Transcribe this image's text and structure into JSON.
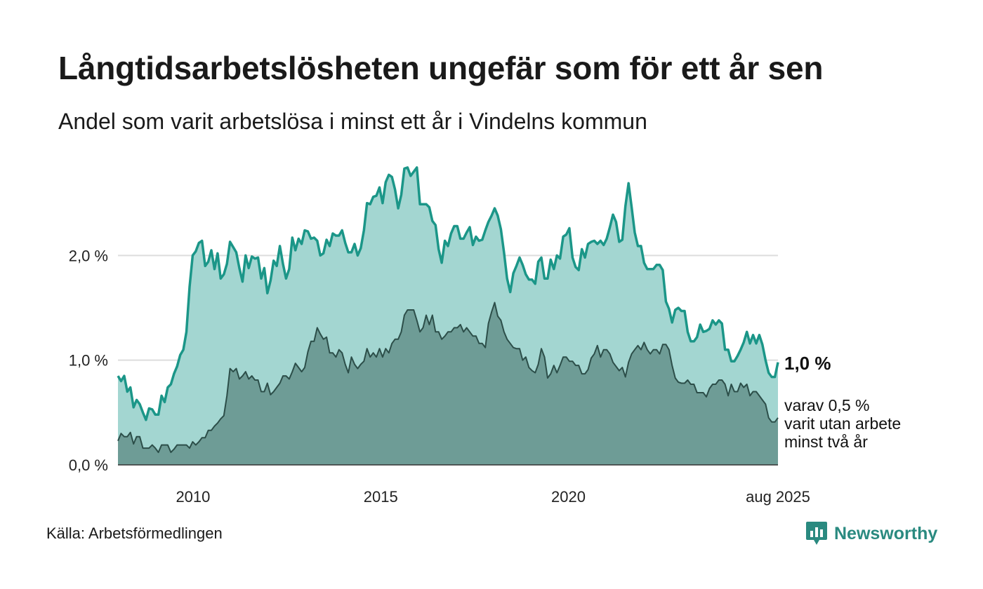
{
  "title": "Långtidsarbetslösheten ungefär som för ett år sen",
  "subtitle": "Andel som varit arbetslösa i minst ett år i Vindelns kommun",
  "source": "Källa: Arbetsförmedlingen",
  "brand": {
    "name": "Newsworthy",
    "icon": "newsworthy-logo-icon"
  },
  "colors": {
    "total_line": "#1b9688",
    "total_fill": "#a3d6d1",
    "long_line": "#2c4e49",
    "long_fill": "#6e9c96",
    "grid": "#dddddd"
  },
  "chart_data": {
    "type": "area",
    "x_start": "2008-01",
    "x_end": "2025-08",
    "x_ticks": [
      "2010",
      "2015",
      "2020",
      "aug 2025"
    ],
    "y_ticks": [
      "0,0 %",
      "1,0 %",
      "2,0 %"
    ],
    "ylim": [
      0,
      3.0
    ],
    "grid": true,
    "end_label_total": "1,0 %",
    "end_label_long": [
      "varav 0,5 %",
      "varit utan arbete",
      "minst två år"
    ],
    "series": [
      {
        "key": "total",
        "values": [
          0.85,
          0.8,
          0.85,
          0.7,
          0.74,
          0.55,
          0.62,
          0.58,
          0.5,
          0.43,
          0.54,
          0.53,
          0.48,
          0.48,
          0.66,
          0.6,
          0.74,
          0.77,
          0.87,
          0.94,
          1.05,
          1.1,
          1.27,
          1.7,
          2.0,
          2.04,
          2.12,
          2.14,
          1.9,
          1.94,
          2.05,
          1.87,
          2.02,
          1.78,
          1.82,
          1.92,
          2.13,
          2.08,
          2.03,
          1.88,
          1.75,
          2.0,
          1.88,
          1.99,
          1.97,
          1.98,
          1.78,
          1.88,
          1.64,
          1.76,
          1.95,
          1.9,
          2.09,
          1.92,
          1.78,
          1.87,
          2.17,
          2.05,
          2.16,
          2.11,
          2.24,
          2.23,
          2.16,
          2.17,
          2.14,
          2.0,
          2.02,
          2.15,
          2.09,
          2.21,
          2.19,
          2.19,
          2.24,
          2.12,
          2.03,
          2.03,
          2.11,
          2.0,
          2.07,
          2.24,
          2.5,
          2.49,
          2.56,
          2.57,
          2.65,
          2.5,
          2.7,
          2.77,
          2.75,
          2.63,
          2.45,
          2.58,
          2.83,
          2.84,
          2.76,
          2.8,
          2.84,
          2.49,
          2.49,
          2.49,
          2.46,
          2.33,
          2.29,
          2.06,
          1.93,
          2.14,
          2.09,
          2.21,
          2.28,
          2.28,
          2.16,
          2.16,
          2.22,
          2.27,
          2.1,
          2.18,
          2.14,
          2.15,
          2.24,
          2.32,
          2.38,
          2.45,
          2.38,
          2.25,
          2.03,
          1.78,
          1.65,
          1.83,
          1.9,
          1.98,
          1.91,
          1.82,
          1.77,
          1.77,
          1.73,
          1.94,
          1.98,
          1.78,
          1.78,
          1.96,
          1.87,
          2.0,
          1.97,
          2.18,
          2.2,
          2.26,
          1.98,
          1.89,
          1.86,
          2.06,
          1.98,
          2.11,
          2.13,
          2.14,
          2.11,
          2.14,
          2.1,
          2.16,
          2.27,
          2.39,
          2.32,
          2.13,
          2.15,
          2.47,
          2.69,
          2.46,
          2.22,
          2.09,
          2.09,
          1.93,
          1.87,
          1.87,
          1.87,
          1.91,
          1.91,
          1.86,
          1.56,
          1.49,
          1.36,
          1.48,
          1.5,
          1.47,
          1.47,
          1.27,
          1.18,
          1.18,
          1.22,
          1.34,
          1.27,
          1.28,
          1.3,
          1.38,
          1.34,
          1.38,
          1.35,
          1.1,
          1.1,
          0.99,
          0.99,
          1.04,
          1.1,
          1.17,
          1.27,
          1.16,
          1.24,
          1.16,
          1.24,
          1.15,
          1.0,
          0.88,
          0.84,
          0.84,
          0.98
        ]
      },
      {
        "key": "long",
        "values": [
          0.23,
          0.3,
          0.27,
          0.27,
          0.31,
          0.2,
          0.27,
          0.27,
          0.16,
          0.16,
          0.16,
          0.19,
          0.16,
          0.12,
          0.19,
          0.19,
          0.19,
          0.12,
          0.15,
          0.19,
          0.19,
          0.19,
          0.19,
          0.16,
          0.22,
          0.19,
          0.22,
          0.26,
          0.26,
          0.33,
          0.33,
          0.37,
          0.4,
          0.44,
          0.47,
          0.66,
          0.92,
          0.89,
          0.92,
          0.82,
          0.85,
          0.89,
          0.82,
          0.85,
          0.81,
          0.81,
          0.7,
          0.7,
          0.78,
          0.67,
          0.7,
          0.74,
          0.78,
          0.85,
          0.85,
          0.82,
          0.89,
          0.97,
          0.93,
          0.89,
          0.93,
          1.08,
          1.18,
          1.18,
          1.31,
          1.25,
          1.2,
          1.22,
          1.07,
          1.07,
          1.03,
          1.1,
          1.07,
          0.96,
          0.88,
          1.03,
          0.96,
          0.92,
          0.96,
          0.99,
          1.11,
          1.03,
          1.07,
          1.03,
          1.11,
          1.03,
          1.11,
          1.07,
          1.16,
          1.2,
          1.2,
          1.27,
          1.43,
          1.48,
          1.48,
          1.48,
          1.38,
          1.27,
          1.31,
          1.43,
          1.34,
          1.43,
          1.27,
          1.27,
          1.2,
          1.23,
          1.27,
          1.27,
          1.31,
          1.31,
          1.34,
          1.27,
          1.31,
          1.27,
          1.23,
          1.23,
          1.16,
          1.16,
          1.12,
          1.35,
          1.46,
          1.55,
          1.42,
          1.38,
          1.27,
          1.2,
          1.16,
          1.12,
          1.11,
          1.11,
          1.0,
          1.03,
          0.93,
          0.9,
          0.88,
          0.96,
          1.11,
          1.03,
          0.83,
          0.87,
          0.95,
          0.88,
          0.95,
          1.03,
          1.03,
          0.99,
          0.99,
          0.95,
          0.95,
          0.87,
          0.87,
          0.91,
          1.02,
          1.06,
          1.14,
          1.03,
          1.1,
          1.1,
          1.06,
          0.98,
          0.94,
          0.9,
          0.93,
          0.84,
          0.98,
          1.06,
          1.1,
          1.14,
          1.1,
          1.17,
          1.1,
          1.06,
          1.1,
          1.1,
          1.06,
          1.15,
          1.15,
          1.1,
          0.95,
          0.83,
          0.79,
          0.78,
          0.78,
          0.81,
          0.77,
          0.77,
          0.69,
          0.69,
          0.69,
          0.65,
          0.73,
          0.77,
          0.77,
          0.81,
          0.81,
          0.77,
          0.66,
          0.77,
          0.7,
          0.7,
          0.78,
          0.74,
          0.77,
          0.66,
          0.7,
          0.7,
          0.66,
          0.62,
          0.58,
          0.45,
          0.41,
          0.41,
          0.45
        ]
      }
    ]
  }
}
